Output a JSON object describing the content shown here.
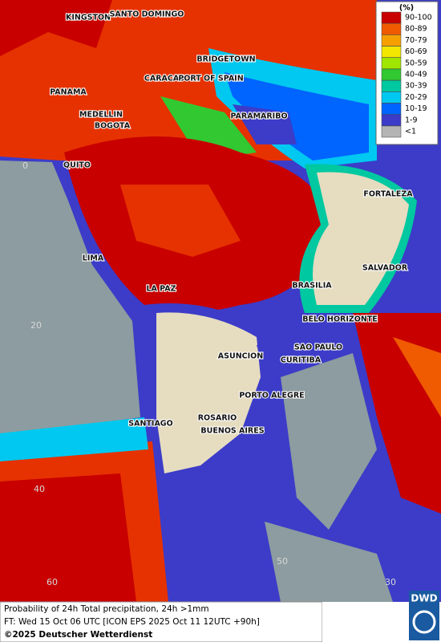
{
  "legend": {
    "title": "(%)",
    "items": [
      {
        "label": "90-100",
        "color": "#c80000"
      },
      {
        "label": "80-89",
        "color": "#f05a00"
      },
      {
        "label": "70-79",
        "color": "#f5a000"
      },
      {
        "label": "60-69",
        "color": "#f0e600"
      },
      {
        "label": "50-59",
        "color": "#a0e600"
      },
      {
        "label": "40-49",
        "color": "#32c832"
      },
      {
        "label": "30-39",
        "color": "#00c8a0"
      },
      {
        "label": "20-29",
        "color": "#00c8f0"
      },
      {
        "label": "10-19",
        "color": "#0064ff"
      },
      {
        "label": "1-9",
        "color": "#3c3cc8"
      },
      {
        "label": "<1",
        "color": "#b4b4b4"
      }
    ]
  },
  "cities": [
    "KINGSTON",
    "SANTO DOMINGO",
    "BRIDGETOWN",
    "CARACAS",
    "PORT OF SPAIN",
    "PANAMA",
    "PARAMARIBO",
    "MEDELLIN",
    "BOGOTA",
    "QUITO",
    "FORTALEZA",
    "SALVADOR",
    "LIMA",
    "BRASILIA",
    "LA PAZ",
    "BELO HORIZONTE",
    "SAO PAULO",
    "ASUNCION",
    "CURITIBA",
    "PORTO ALEGRE",
    "ROSARIO",
    "SANTIAGO",
    "BUENOS AIRES"
  ],
  "grid_labels": [
    "0",
    "20",
    "40",
    "60",
    "50",
    "30"
  ],
  "footer": {
    "line1": "Probability of 24h Total precipitation, 24h >1mm",
    "line2": "FT: Wed 15 Oct 06 UTC [ICON EPS 2025 Oct 11 12UTC +90h]",
    "copyright": "©2025 Deutscher Wetterdienst",
    "logo": "DWD"
  }
}
